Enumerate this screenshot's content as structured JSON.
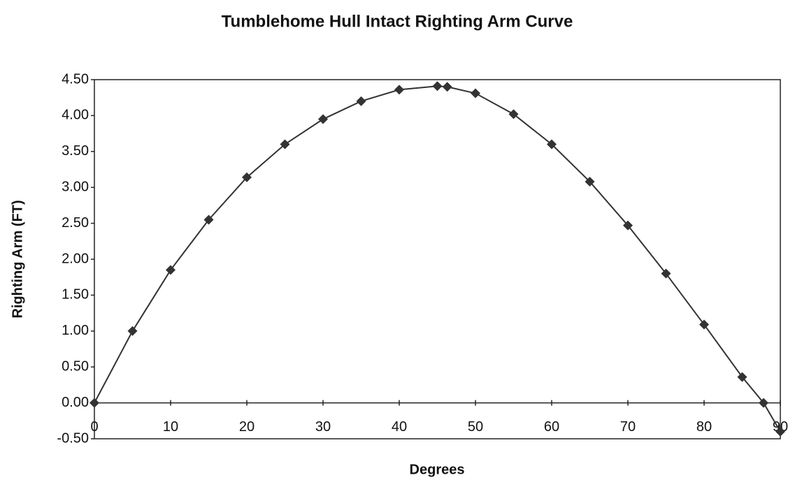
{
  "chart_data": {
    "type": "line",
    "title": "Tumblehome Hull Intact Righting Arm Curve",
    "xlabel": "Degrees",
    "ylabel": "Righting Arm (FT)",
    "x": [
      0,
      5,
      10,
      15,
      20,
      25,
      30,
      35,
      40,
      45,
      46.3,
      50,
      55,
      60,
      65,
      70,
      75,
      80,
      85,
      87.8,
      90
    ],
    "series": [
      {
        "name": "Righting Arm",
        "color": "#333333",
        "values": [
          0,
          1.0,
          1.85,
          2.55,
          3.14,
          3.6,
          3.95,
          4.2,
          4.36,
          4.41,
          4.4,
          4.31,
          4.02,
          3.6,
          3.08,
          2.47,
          1.8,
          1.09,
          0.36,
          0,
          -0.4
        ]
      }
    ],
    "xlim": [
      0,
      90
    ],
    "xticks": [
      0,
      10,
      20,
      30,
      40,
      50,
      60,
      70,
      80,
      90
    ],
    "ylim": [
      -0.5,
      4.5
    ],
    "yticks": [
      {
        "value": -0.5,
        "label": "-0.50"
      },
      {
        "value": 0,
        "label": "0.00"
      },
      {
        "value": 0.5,
        "label": "0.50"
      },
      {
        "value": 1,
        "label": "1.00"
      },
      {
        "value": 1.5,
        "label": "1.50"
      },
      {
        "value": 2,
        "label": "2.00"
      },
      {
        "value": 2.5,
        "label": "2.50"
      },
      {
        "value": 3,
        "label": "3.00"
      },
      {
        "value": 3.5,
        "label": "3.50"
      },
      {
        "value": 4,
        "label": "4.00"
      },
      {
        "value": 4.5,
        "label": "4.50"
      }
    ],
    "grid": false
  }
}
